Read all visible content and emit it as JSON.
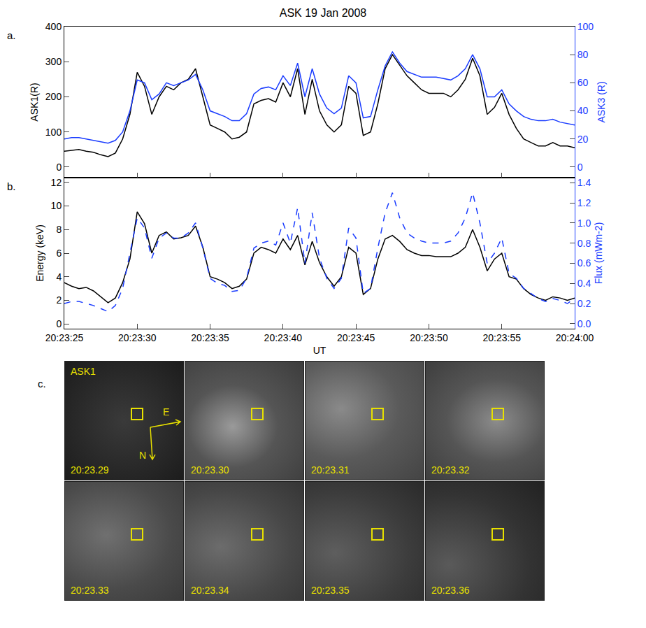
{
  "chart_data": [
    {
      "type": "line",
      "title": "ASK 19 Jan 2008",
      "label": "a.",
      "x": [
        25,
        25.5,
        26,
        26.5,
        27,
        27.5,
        28,
        28.5,
        29,
        29.5,
        30,
        30.5,
        31,
        31.5,
        32,
        32.5,
        33,
        33.5,
        34,
        34.5,
        35,
        35.5,
        36,
        36.5,
        37,
        37.5,
        38,
        38.5,
        39,
        39.5,
        40,
        40.5,
        41,
        41.5,
        42,
        42.5,
        43,
        43.5,
        44,
        44.5,
        45,
        45.5,
        46,
        46.5,
        47,
        47.5,
        48,
        48.5,
        49,
        49.5,
        50,
        50.5,
        51,
        51.5,
        52,
        52.5,
        53,
        53.5,
        54,
        54.5,
        55,
        55.5,
        56,
        56.5,
        57,
        57.5,
        58,
        58.5,
        59,
        59.5,
        60
      ],
      "xlim": [
        25,
        60
      ],
      "xticks": [
        {
          "value": 25,
          "label": "20:23:25"
        },
        {
          "value": 30,
          "label": "20:23:30"
        },
        {
          "value": 35,
          "label": "20:23:35"
        },
        {
          "value": 40,
          "label": "20:23:40"
        },
        {
          "value": 45,
          "label": "20:23:45"
        },
        {
          "value": 50,
          "label": "20:23:50"
        },
        {
          "value": 55,
          "label": "20:23:55"
        },
        {
          "value": 60,
          "label": "20:24:00"
        }
      ],
      "tick_labels": "y",
      "ylabel": "ASK1(R)",
      "ylim": [
        -30,
        400
      ],
      "yticks": [
        0,
        100,
        200,
        300,
        400
      ],
      "y2label": "ASK3 (R)",
      "y2lim": [
        -7.5,
        100
      ],
      "y2ticks": [
        0,
        20,
        40,
        60,
        80,
        100
      ],
      "series": [
        {
          "color": "#000000",
          "line_style": "solid",
          "values": [
            45,
            48,
            50,
            45,
            42,
            35,
            30,
            40,
            80,
            150,
            270,
            230,
            150,
            200,
            230,
            220,
            240,
            250,
            280,
            200,
            120,
            110,
            100,
            80,
            85,
            100,
            180,
            190,
            195,
            185,
            240,
            200,
            280,
            150,
            250,
            160,
            120,
            100,
            120,
            230,
            210,
            90,
            100,
            180,
            280,
            320,
            290,
            260,
            240,
            220,
            210,
            210,
            210,
            200,
            220,
            250,
            310,
            260,
            150,
            170,
            210,
            150,
            110,
            80,
            70,
            60,
            60,
            70,
            60,
            60,
            55
          ]
        },
        {
          "color": "#1a3cff",
          "line_style": "solid",
          "axis": "y2",
          "values": [
            20,
            21,
            21,
            20,
            19,
            18,
            17,
            19,
            25,
            40,
            62,
            60,
            48,
            52,
            60,
            58,
            60,
            62,
            66,
            55,
            40,
            38,
            36,
            33,
            33,
            38,
            52,
            56,
            57,
            55,
            65,
            58,
            74,
            50,
            70,
            52,
            42,
            38,
            42,
            65,
            60,
            35,
            36,
            55,
            72,
            82,
            74,
            68,
            66,
            64,
            64,
            64,
            63,
            62,
            65,
            70,
            80,
            70,
            50,
            50,
            55,
            45,
            40,
            36,
            34,
            33,
            33,
            34,
            32,
            31,
            30
          ]
        }
      ]
    },
    {
      "type": "line",
      "label": "b.",
      "x": [
        25,
        25.5,
        26,
        26.5,
        27,
        27.5,
        28,
        28.5,
        29,
        29.5,
        30,
        30.5,
        31,
        31.5,
        32,
        32.5,
        33,
        33.5,
        34,
        34.5,
        35,
        35.5,
        36,
        36.5,
        37,
        37.5,
        38,
        38.5,
        39,
        39.5,
        40,
        40.5,
        41,
        41.5,
        42,
        42.5,
        43,
        43.5,
        44,
        44.5,
        45,
        45.5,
        46,
        46.5,
        47,
        47.5,
        48,
        48.5,
        49,
        49.5,
        50,
        50.5,
        51,
        51.5,
        52,
        52.5,
        53,
        53.5,
        54,
        54.5,
        55,
        55.5,
        56,
        56.5,
        57,
        57.5,
        58,
        58.5,
        59,
        59.5,
        60
      ],
      "xlabel": "UT",
      "xlim": [
        25,
        60
      ],
      "xticks": [
        {
          "value": 25,
          "label": "20:23:25"
        },
        {
          "value": 30,
          "label": "20:23:30"
        },
        {
          "value": 35,
          "label": "20:23:35"
        },
        {
          "value": 40,
          "label": "20:23:40"
        },
        {
          "value": 45,
          "label": "20:23:45"
        },
        {
          "value": 50,
          "label": "20:23:50"
        },
        {
          "value": 55,
          "label": "20:23:55"
        },
        {
          "value": 60,
          "label": "20:24:00"
        }
      ],
      "ylabel": "Energy (keV)",
      "ylim": [
        -0.4,
        12.4
      ],
      "yticks": [
        0,
        2,
        4,
        6,
        8,
        10,
        12
      ],
      "y2label": "Flux (mWm-2)",
      "y2lim": [
        -0.05,
        1.45
      ],
      "y2ticks": [
        {
          "value": 0,
          "label": "0.0"
        },
        0.2,
        0.4,
        0.6,
        0.8,
        {
          "value": 1,
          "label": "1.0"
        },
        1.2,
        1.4
      ],
      "series": [
        {
          "color": "#000000",
          "line_style": "solid",
          "values": [
            3.5,
            3.2,
            3.0,
            3.1,
            2.8,
            2.3,
            1.8,
            2.2,
            3.5,
            5.5,
            9.5,
            8.5,
            6.0,
            7.5,
            7.8,
            7.2,
            7.3,
            7.5,
            8.3,
            6.5,
            4.0,
            3.8,
            3.5,
            3.0,
            3.2,
            3.8,
            6.0,
            6.5,
            6.3,
            6.0,
            7.2,
            6.3,
            7.5,
            5.0,
            7.0,
            5.2,
            4.0,
            3.2,
            4.0,
            6.5,
            6.0,
            2.5,
            3.0,
            5.5,
            7.2,
            7.5,
            7.0,
            6.3,
            6.0,
            5.8,
            5.8,
            5.7,
            5.7,
            5.7,
            6.0,
            6.5,
            8.0,
            6.5,
            4.5,
            5.5,
            6.0,
            4.0,
            3.8,
            3.0,
            2.5,
            2.2,
            2.0,
            2.3,
            2.2,
            2.0,
            2.2
          ]
        },
        {
          "color": "#1a3cff",
          "line_style": "dashed",
          "axis": "y2",
          "values": [
            0.2,
            0.22,
            0.22,
            0.2,
            0.18,
            0.15,
            0.12,
            0.18,
            0.35,
            0.7,
            1.05,
            0.95,
            0.65,
            0.85,
            0.9,
            0.85,
            0.85,
            0.9,
            1.0,
            0.75,
            0.45,
            0.4,
            0.38,
            0.32,
            0.33,
            0.45,
            0.75,
            0.8,
            0.82,
            0.78,
            1.0,
            0.8,
            1.15,
            0.6,
            1.1,
            0.65,
            0.45,
            0.35,
            0.45,
            0.95,
            0.85,
            0.3,
            0.35,
            0.75,
            1.1,
            1.3,
            1.05,
            0.9,
            0.85,
            0.82,
            0.8,
            0.8,
            0.8,
            0.82,
            0.9,
            1.05,
            1.3,
            1.0,
            0.6,
            0.7,
            0.85,
            0.5,
            0.45,
            0.35,
            0.3,
            0.25,
            0.22,
            0.25,
            0.23,
            0.2,
            0.25
          ]
        }
      ]
    }
  ],
  "image_panel": {
    "label": "c.",
    "camera": "ASK1",
    "compass": {
      "east": "E",
      "north": "N"
    },
    "frames": [
      "20:23.29",
      "20:23.30",
      "20:23.31",
      "20:23.32",
      "20:23.33",
      "20:23.34",
      "20:23.35",
      "20:23.36"
    ]
  }
}
